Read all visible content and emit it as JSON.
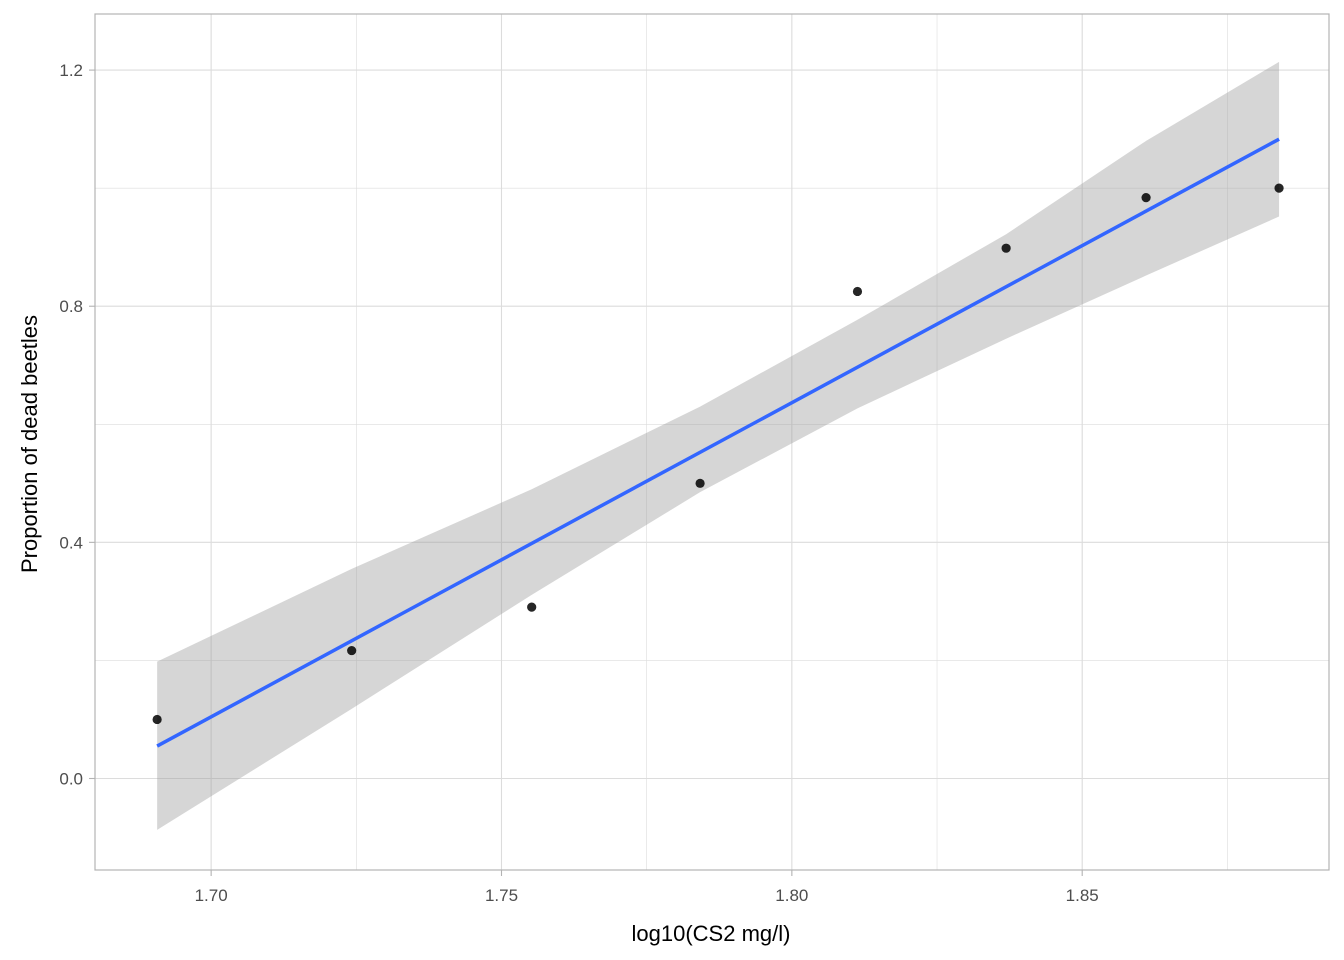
{
  "chart_data": {
    "type": "scatter",
    "title": "",
    "xlabel": "log10(CS2 mg/l)",
    "ylabel": "Proportion of dead beetles",
    "xlim": [
      1.68,
      1.8925
    ],
    "ylim": [
      -0.155,
      1.295
    ],
    "x_ticks": [
      1.7,
      1.75,
      1.8,
      1.85
    ],
    "x_tick_labels": [
      "1.70",
      "1.75",
      "1.80",
      "1.85"
    ],
    "y_ticks": [
      0.0,
      0.4,
      0.8,
      1.2
    ],
    "y_tick_labels": [
      "0.0",
      "0.4",
      "0.8",
      "1.2"
    ],
    "grid": true,
    "points": {
      "x": [
        1.6907,
        1.7242,
        1.7552,
        1.7842,
        1.8113,
        1.8369,
        1.861,
        1.8839
      ],
      "y": [
        0.1,
        0.2167,
        0.2903,
        0.5,
        0.825,
        0.8983,
        0.9839,
        1.0
      ]
    },
    "fit_line": {
      "x": [
        1.6907,
        1.8839
      ],
      "y": [
        0.055,
        1.083
      ]
    },
    "confidence_band": {
      "x": [
        1.6907,
        1.7242,
        1.7552,
        1.7842,
        1.8113,
        1.8369,
        1.861,
        1.8839
      ],
      "lower": [
        -0.087,
        0.118,
        0.311,
        0.485,
        0.627,
        0.745,
        0.852,
        0.952
      ],
      "upper": [
        0.198,
        0.355,
        0.49,
        0.63,
        0.777,
        0.922,
        1.08,
        1.214
      ]
    },
    "colors": {
      "points": "#000000",
      "fit_line": "#3366FF",
      "band": "#999999",
      "grid": "#dcdcdc",
      "panel_border": "#b3b3b3"
    }
  }
}
